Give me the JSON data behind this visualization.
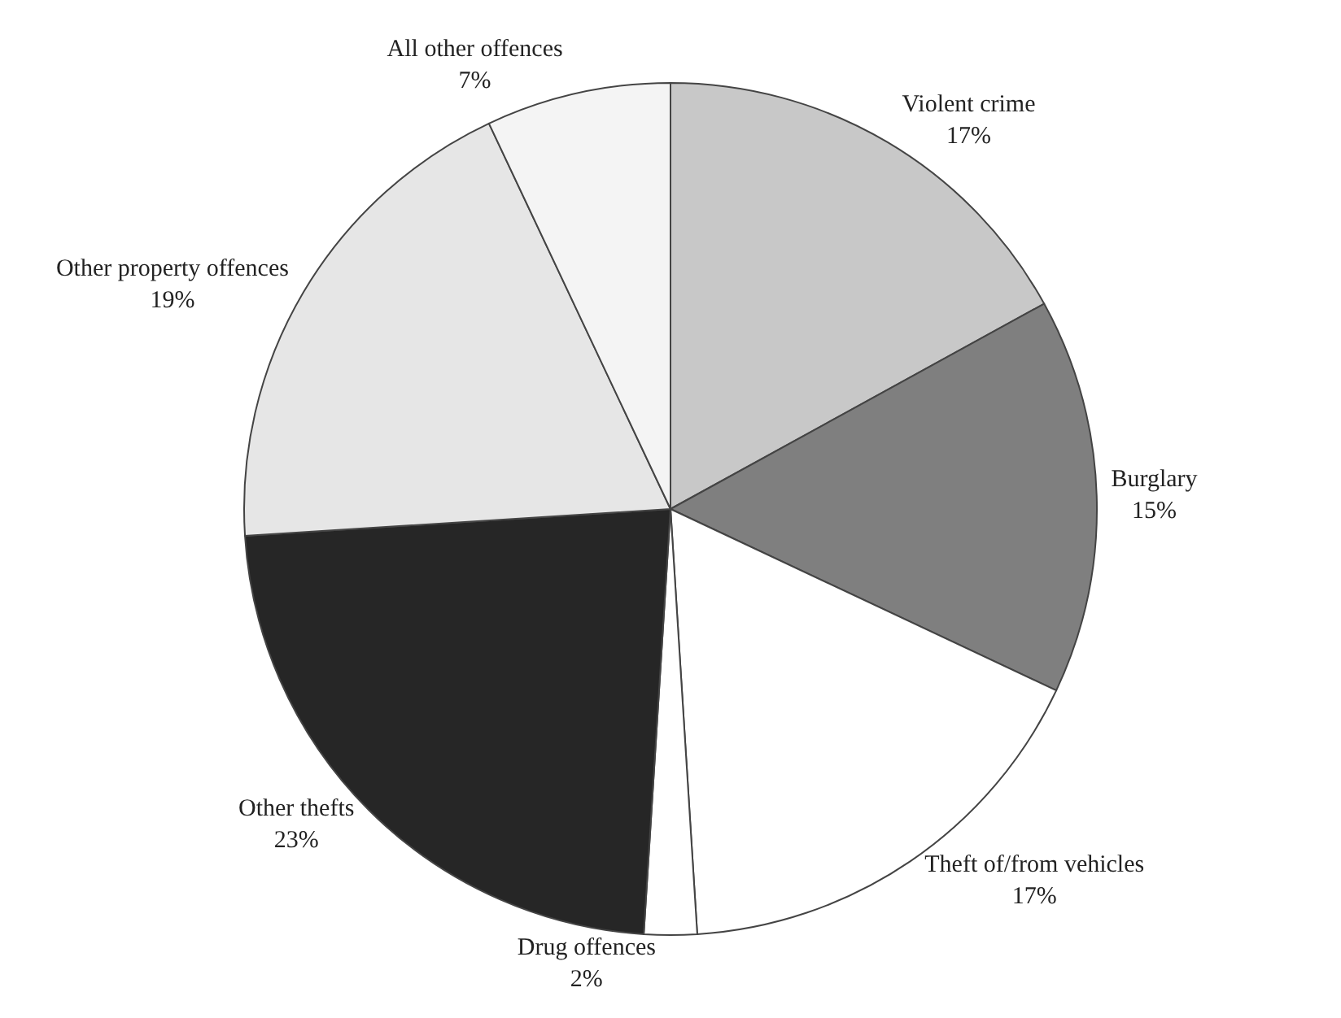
{
  "chart_data": {
    "type": "pie",
    "categories": [
      "Violent crime",
      "Burglary",
      "Theft of/from vehicles",
      "Drug offences",
      "Other thefts",
      "Other property offences",
      "All other offences"
    ],
    "values": [
      17,
      15,
      17,
      2,
      23,
      19,
      7
    ],
    "value_labels": [
      "17%",
      "15%",
      "17%",
      "2%",
      "23%",
      "19%",
      "7%"
    ],
    "colors": [
      "#c8c8c8",
      "#7f7f7f",
      "#ffffff",
      "#ffffff",
      "#262626",
      "#e6e6e6",
      "#f4f4f4"
    ],
    "legend": false
  }
}
